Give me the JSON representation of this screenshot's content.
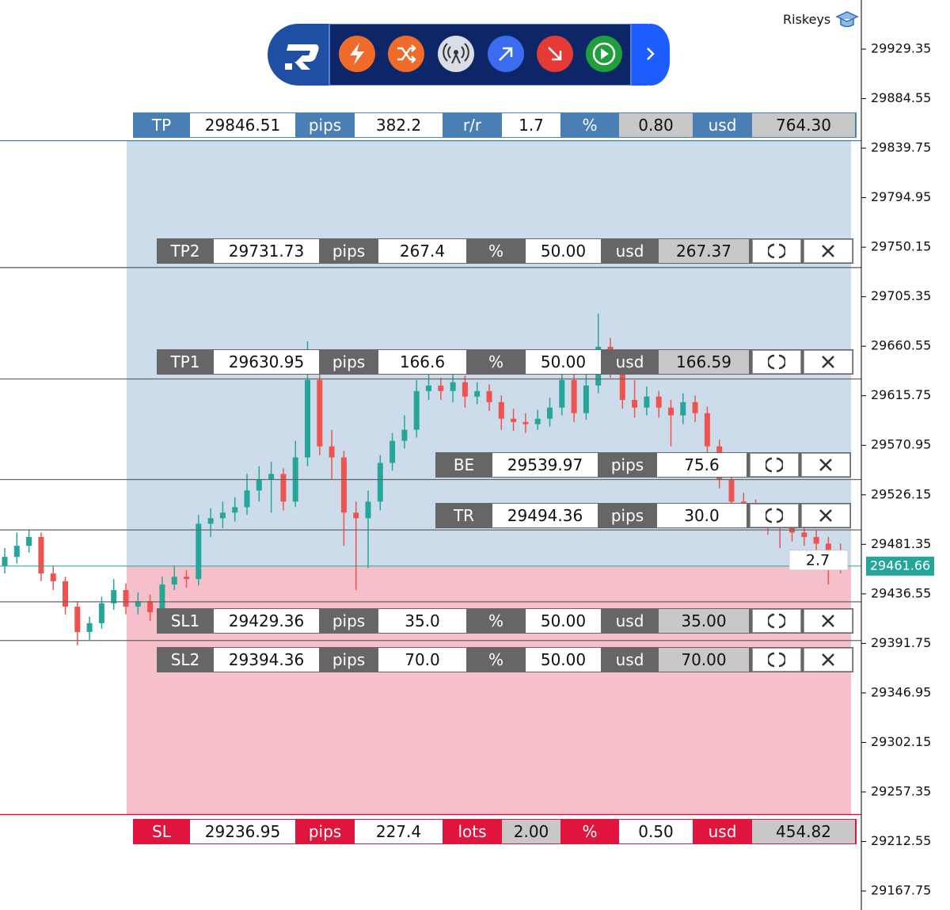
{
  "header": {
    "brand": "Riskeys"
  },
  "panels": {
    "tp": {
      "color": "#4a7fb5",
      "cells": [
        "TP",
        "29846.51",
        "pips",
        "382.2",
        "r/r",
        "1.7",
        "%",
        "0.80",
        "usd",
        "764.30"
      ]
    },
    "tp2": {
      "color": "#666666",
      "cells": [
        "TP2",
        "29731.73",
        "pips",
        "267.4",
        "%",
        "50.00",
        "usd",
        "267.37"
      ]
    },
    "tp1": {
      "color": "#666666",
      "cells": [
        "TP1",
        "29630.95",
        "pips",
        "166.6",
        "%",
        "50.00",
        "usd",
        "166.59"
      ]
    },
    "be": {
      "color": "#666666",
      "cells": [
        "BE",
        "29539.97",
        "pips",
        "75.6"
      ]
    },
    "tr": {
      "color": "#666666",
      "cells": [
        "TR",
        "29494.36",
        "pips",
        "30.0"
      ]
    },
    "sl1": {
      "color": "#666666",
      "cells": [
        "SL1",
        "29429.36",
        "pips",
        "35.0",
        "%",
        "50.00",
        "usd",
        "35.00"
      ]
    },
    "sl2": {
      "color": "#666666",
      "cells": [
        "SL2",
        "29394.36",
        "pips",
        "70.0",
        "%",
        "50.00",
        "usd",
        "70.00"
      ]
    },
    "sl": {
      "color": "#e0143c",
      "cells": [
        "SL",
        "29236.95",
        "pips",
        "227.4",
        "lots",
        "2.00",
        "%",
        "0.50",
        "usd",
        "454.82"
      ]
    }
  },
  "chart_data": {
    "type": "candlestick",
    "up_color": "#26a69a",
    "down_color": "#ef5350",
    "profit_zone_color": "#cddceb",
    "loss_zone_color": "#f5c0c9",
    "current_price": 29461.66,
    "current_price_color": "#26a69a",
    "entry_offset_pips": 2.7,
    "ylim": [
      29150.56,
      29973.77
    ],
    "yticks": [
      29929.35,
      29884.55,
      29839.75,
      29794.95,
      29750.15,
      29705.35,
      29660.55,
      29615.75,
      29570.95,
      29526.15,
      29481.35,
      29436.55,
      29391.75,
      29346.95,
      29302.15,
      29257.35,
      29212.55,
      29167.75
    ],
    "open": [
      29462,
      29470,
      29480,
      29488,
      29455,
      29448,
      29425,
      29402,
      29410,
      29428,
      29440,
      29425,
      29430,
      29420,
      29445,
      29452,
      29450,
      29500,
      29505,
      29510,
      29515,
      29530,
      29540,
      29545,
      29520,
      29560,
      29630,
      29570,
      29560,
      29510,
      29505,
      29520,
      29555,
      29575,
      29585,
      29620,
      29625,
      29620,
      29628,
      29615,
      29620,
      29610,
      29595,
      29592,
      29590,
      29595,
      29605,
      29630,
      29600,
      29625,
      29660,
      29640,
      29612,
      29605,
      29615,
      29605,
      29598,
      29610,
      29600,
      29570,
      29540,
      29520,
      29515,
      29512,
      29500,
      29498,
      29492,
      29488,
      29482,
      29475
    ],
    "high": [
      29478,
      29492,
      29495,
      29492,
      29462,
      29452,
      29430,
      29416,
      29434,
      29450,
      29446,
      29438,
      29436,
      29452,
      29462,
      29458,
      29508,
      29514,
      29520,
      29524,
      29545,
      29552,
      29556,
      29550,
      29575,
      29665,
      29638,
      29585,
      29566,
      29520,
      29530,
      29562,
      29582,
      29598,
      29630,
      29635,
      29632,
      29636,
      29634,
      29628,
      29626,
      29616,
      29604,
      29600,
      29603,
      29614,
      29638,
      29635,
      29640,
      29690,
      29668,
      29646,
      29630,
      29624,
      29620,
      29612,
      29618,
      29616,
      29606,
      29576,
      29545,
      29528,
      29522,
      29518,
      29506,
      29505,
      29498,
      29494,
      29488,
      29482
    ],
    "low": [
      29455,
      29464,
      29474,
      29448,
      29440,
      29418,
      29390,
      29395,
      29405,
      29422,
      29418,
      29418,
      29412,
      29415,
      29440,
      29442,
      29444,
      29488,
      29496,
      29502,
      29508,
      29520,
      29510,
      29512,
      29515,
      29552,
      29562,
      29540,
      29480,
      29440,
      29460,
      29512,
      29548,
      29568,
      29578,
      29612,
      29612,
      29610,
      29605,
      29608,
      29602,
      29585,
      29584,
      29582,
      29585,
      29588,
      29598,
      29592,
      29594,
      29618,
      29632,
      29604,
      29596,
      29598,
      29596,
      29570,
      29590,
      29592,
      29562,
      29532,
      29512,
      29506,
      29500,
      29490,
      29478,
      29484,
      29480,
      29474,
      29445,
      29455
    ],
    "close": [
      29470,
      29480,
      29488,
      29455,
      29448,
      29425,
      29402,
      29410,
      29428,
      29440,
      29425,
      29430,
      29420,
      29445,
      29452,
      29450,
      29500,
      29505,
      29510,
      29515,
      29530,
      29540,
      29545,
      29520,
      29560,
      29630,
      29570,
      29560,
      29510,
      29505,
      29520,
      29555,
      29575,
      29585,
      29620,
      29625,
      29620,
      29628,
      29615,
      29620,
      29610,
      29595,
      29592,
      29590,
      29595,
      29605,
      29630,
      29600,
      29625,
      29660,
      29640,
      29612,
      29605,
      29615,
      29605,
      29598,
      29610,
      29600,
      29570,
      29540,
      29520,
      29515,
      29512,
      29500,
      29498,
      29492,
      29488,
      29482,
      29475,
      29462
    ]
  }
}
